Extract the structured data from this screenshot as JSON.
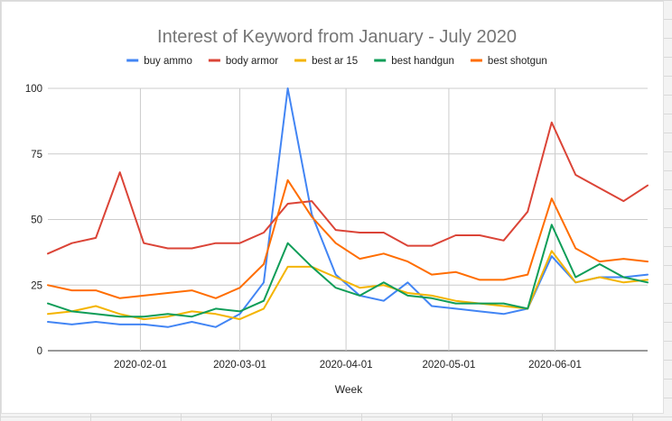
{
  "chart_data": {
    "type": "line",
    "title": "Interest of Keyword from January - July 2020",
    "xlabel": "Week",
    "ylabel": "",
    "ylim": [
      0,
      100
    ],
    "yticks": [
      0,
      25,
      50,
      75,
      100
    ],
    "xticks": [
      "2020-02-01",
      "2020-03-01",
      "2020-04-01",
      "2020-05-01",
      "2020-06-01"
    ],
    "legend_position": "top",
    "grid": true,
    "x": [
      "2020-01-05",
      "2020-01-12",
      "2020-01-19",
      "2020-01-26",
      "2020-02-02",
      "2020-02-09",
      "2020-02-16",
      "2020-02-23",
      "2020-03-01",
      "2020-03-08",
      "2020-03-15",
      "2020-03-22",
      "2020-03-29",
      "2020-04-05",
      "2020-04-12",
      "2020-04-19",
      "2020-04-26",
      "2020-05-03",
      "2020-05-10",
      "2020-05-17",
      "2020-05-24",
      "2020-05-31",
      "2020-06-07",
      "2020-06-14",
      "2020-06-21",
      "2020-06-28"
    ],
    "series": [
      {
        "name": "buy ammo",
        "color": "#4285f4",
        "values": [
          11,
          10,
          11,
          10,
          10,
          9,
          11,
          9,
          14,
          26,
          100,
          52,
          29,
          21,
          19,
          26,
          17,
          16,
          15,
          14,
          16,
          36,
          26,
          28,
          28,
          29
        ]
      },
      {
        "name": "body armor",
        "color": "#db4437",
        "values": [
          37,
          41,
          43,
          68,
          41,
          39,
          39,
          41,
          41,
          45,
          56,
          57,
          46,
          45,
          45,
          40,
          40,
          44,
          44,
          42,
          53,
          87,
          67,
          62,
          57,
          63
        ]
      },
      {
        "name": "best ar 15",
        "color": "#f4b400",
        "values": [
          14,
          15,
          17,
          14,
          12,
          13,
          15,
          14,
          12,
          16,
          32,
          32,
          28,
          24,
          25,
          22,
          21,
          19,
          18,
          17,
          16,
          38,
          26,
          28,
          26,
          27
        ]
      },
      {
        "name": "best handgun",
        "color": "#0f9d58",
        "values": [
          18,
          15,
          14,
          13,
          13,
          14,
          13,
          16,
          15,
          19,
          41,
          32,
          24,
          21,
          26,
          21,
          20,
          18,
          18,
          18,
          16,
          48,
          28,
          33,
          28,
          26
        ]
      },
      {
        "name": "best shotgun",
        "color": "#ff6d00",
        "values": [
          25,
          23,
          23,
          20,
          21,
          22,
          23,
          20,
          24,
          33,
          65,
          51,
          41,
          35,
          37,
          34,
          29,
          30,
          27,
          27,
          29,
          58,
          39,
          34,
          35,
          34
        ]
      }
    ]
  }
}
